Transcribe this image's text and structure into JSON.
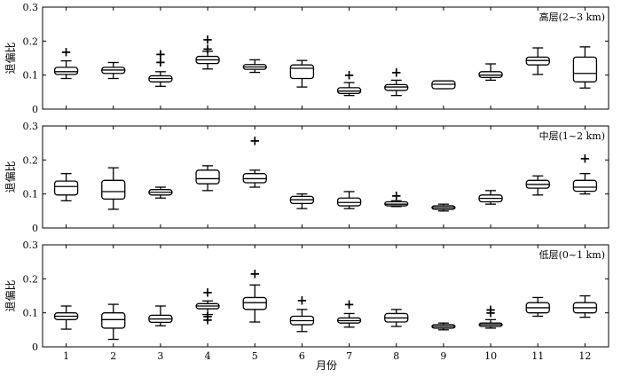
{
  "chart_data": {
    "type": "box",
    "xlabel": "月份",
    "ylabel": "退偏比",
    "categories": [
      "1",
      "2",
      "3",
      "4",
      "5",
      "6",
      "7",
      "8",
      "9",
      "10",
      "11",
      "12"
    ],
    "ylim": [
      0,
      0.3
    ],
    "yticks": [
      "0",
      "0.1",
      "0.2",
      "0.3"
    ],
    "panels": [
      {
        "label": "高层(2~3 km)",
        "boxes": [
          {
            "min": 0.09,
            "q1": 0.102,
            "median": 0.11,
            "q3": 0.123,
            "max": 0.142,
            "outliers": [
              0.168
            ]
          },
          {
            "min": 0.09,
            "q1": 0.105,
            "median": 0.115,
            "q3": 0.123,
            "max": 0.137,
            "outliers": []
          },
          {
            "min": 0.067,
            "q1": 0.08,
            "median": 0.09,
            "q3": 0.098,
            "max": 0.11,
            "outliers": [
              0.138,
              0.162
            ]
          },
          {
            "min": 0.118,
            "q1": 0.134,
            "median": 0.145,
            "q3": 0.155,
            "max": 0.17,
            "outliers": [
              0.178,
              0.205
            ]
          },
          {
            "min": 0.108,
            "q1": 0.117,
            "median": 0.124,
            "q3": 0.131,
            "max": 0.145,
            "outliers": []
          },
          {
            "min": 0.065,
            "q1": 0.09,
            "median": 0.12,
            "q3": 0.13,
            "max": 0.143,
            "outliers": []
          },
          {
            "min": 0.04,
            "q1": 0.046,
            "median": 0.053,
            "q3": 0.063,
            "max": 0.078,
            "outliers": [
              0.1
            ]
          },
          {
            "min": 0.04,
            "q1": 0.055,
            "median": 0.065,
            "q3": 0.072,
            "max": 0.085,
            "outliers": [
              0.108
            ]
          },
          {
            "min": 0.06,
            "q1": 0.06,
            "median": 0.073,
            "q3": 0.083,
            "max": 0.083,
            "outliers": []
          },
          {
            "min": 0.085,
            "q1": 0.093,
            "median": 0.1,
            "q3": 0.11,
            "max": 0.133,
            "outliers": []
          },
          {
            "min": 0.102,
            "q1": 0.13,
            "median": 0.143,
            "q3": 0.153,
            "max": 0.18,
            "outliers": []
          },
          {
            "min": 0.062,
            "q1": 0.08,
            "median": 0.105,
            "q3": 0.153,
            "max": 0.183,
            "outliers": []
          }
        ]
      },
      {
        "label": "中层(1~2 km)",
        "boxes": [
          {
            "min": 0.08,
            "q1": 0.097,
            "median": 0.122,
            "q3": 0.138,
            "max": 0.16,
            "outliers": []
          },
          {
            "min": 0.055,
            "q1": 0.085,
            "median": 0.107,
            "q3": 0.14,
            "max": 0.177,
            "outliers": []
          },
          {
            "min": 0.088,
            "q1": 0.097,
            "median": 0.105,
            "q3": 0.113,
            "max": 0.12,
            "outliers": []
          },
          {
            "min": 0.11,
            "q1": 0.13,
            "median": 0.145,
            "q3": 0.17,
            "max": 0.183,
            "outliers": []
          },
          {
            "min": 0.12,
            "q1": 0.133,
            "median": 0.145,
            "q3": 0.16,
            "max": 0.17,
            "outliers": [
              0.257
            ]
          },
          {
            "min": 0.057,
            "q1": 0.072,
            "median": 0.083,
            "q3": 0.093,
            "max": 0.1,
            "outliers": []
          },
          {
            "min": 0.057,
            "q1": 0.065,
            "median": 0.075,
            "q3": 0.088,
            "max": 0.107,
            "outliers": []
          },
          {
            "min": 0.063,
            "q1": 0.065,
            "median": 0.07,
            "q3": 0.077,
            "max": 0.08,
            "outliers": [
              0.095
            ]
          },
          {
            "min": 0.05,
            "q1": 0.055,
            "median": 0.06,
            "q3": 0.065,
            "max": 0.07,
            "outliers": []
          },
          {
            "min": 0.07,
            "q1": 0.077,
            "median": 0.087,
            "q3": 0.097,
            "max": 0.11,
            "outliers": []
          },
          {
            "min": 0.097,
            "q1": 0.117,
            "median": 0.128,
            "q3": 0.14,
            "max": 0.153,
            "outliers": []
          },
          {
            "min": 0.1,
            "q1": 0.108,
            "median": 0.12,
            "q3": 0.14,
            "max": 0.16,
            "outliers": [
              0.205
            ]
          }
        ]
      },
      {
        "label": "低层(0~1 km)",
        "boxes": [
          {
            "min": 0.052,
            "q1": 0.08,
            "median": 0.09,
            "q3": 0.1,
            "max": 0.12,
            "outliers": []
          },
          {
            "min": 0.022,
            "q1": 0.055,
            "median": 0.08,
            "q3": 0.1,
            "max": 0.125,
            "outliers": []
          },
          {
            "min": 0.062,
            "q1": 0.072,
            "median": 0.082,
            "q3": 0.093,
            "max": 0.12,
            "outliers": []
          },
          {
            "min": 0.095,
            "q1": 0.112,
            "median": 0.12,
            "q3": 0.127,
            "max": 0.135,
            "outliers": [
              0.08,
              0.09,
              0.16
            ]
          },
          {
            "min": 0.073,
            "q1": 0.11,
            "median": 0.13,
            "q3": 0.145,
            "max": 0.182,
            "outliers": [
              0.215
            ]
          },
          {
            "min": 0.045,
            "q1": 0.065,
            "median": 0.077,
            "q3": 0.09,
            "max": 0.11,
            "outliers": [
              0.137
            ]
          },
          {
            "min": 0.058,
            "q1": 0.07,
            "median": 0.077,
            "q3": 0.085,
            "max": 0.098,
            "outliers": [
              0.125
            ]
          },
          {
            "min": 0.06,
            "q1": 0.073,
            "median": 0.085,
            "q3": 0.098,
            "max": 0.11,
            "outliers": []
          },
          {
            "min": 0.05,
            "q1": 0.055,
            "median": 0.06,
            "q3": 0.065,
            "max": 0.07,
            "outliers": []
          },
          {
            "min": 0.055,
            "q1": 0.06,
            "median": 0.065,
            "q3": 0.07,
            "max": 0.08,
            "outliers": [
              0.1,
              0.11
            ]
          },
          {
            "min": 0.09,
            "q1": 0.1,
            "median": 0.115,
            "q3": 0.13,
            "max": 0.145,
            "outliers": []
          },
          {
            "min": 0.087,
            "q1": 0.1,
            "median": 0.115,
            "q3": 0.13,
            "max": 0.15,
            "outliers": []
          }
        ]
      }
    ]
  }
}
